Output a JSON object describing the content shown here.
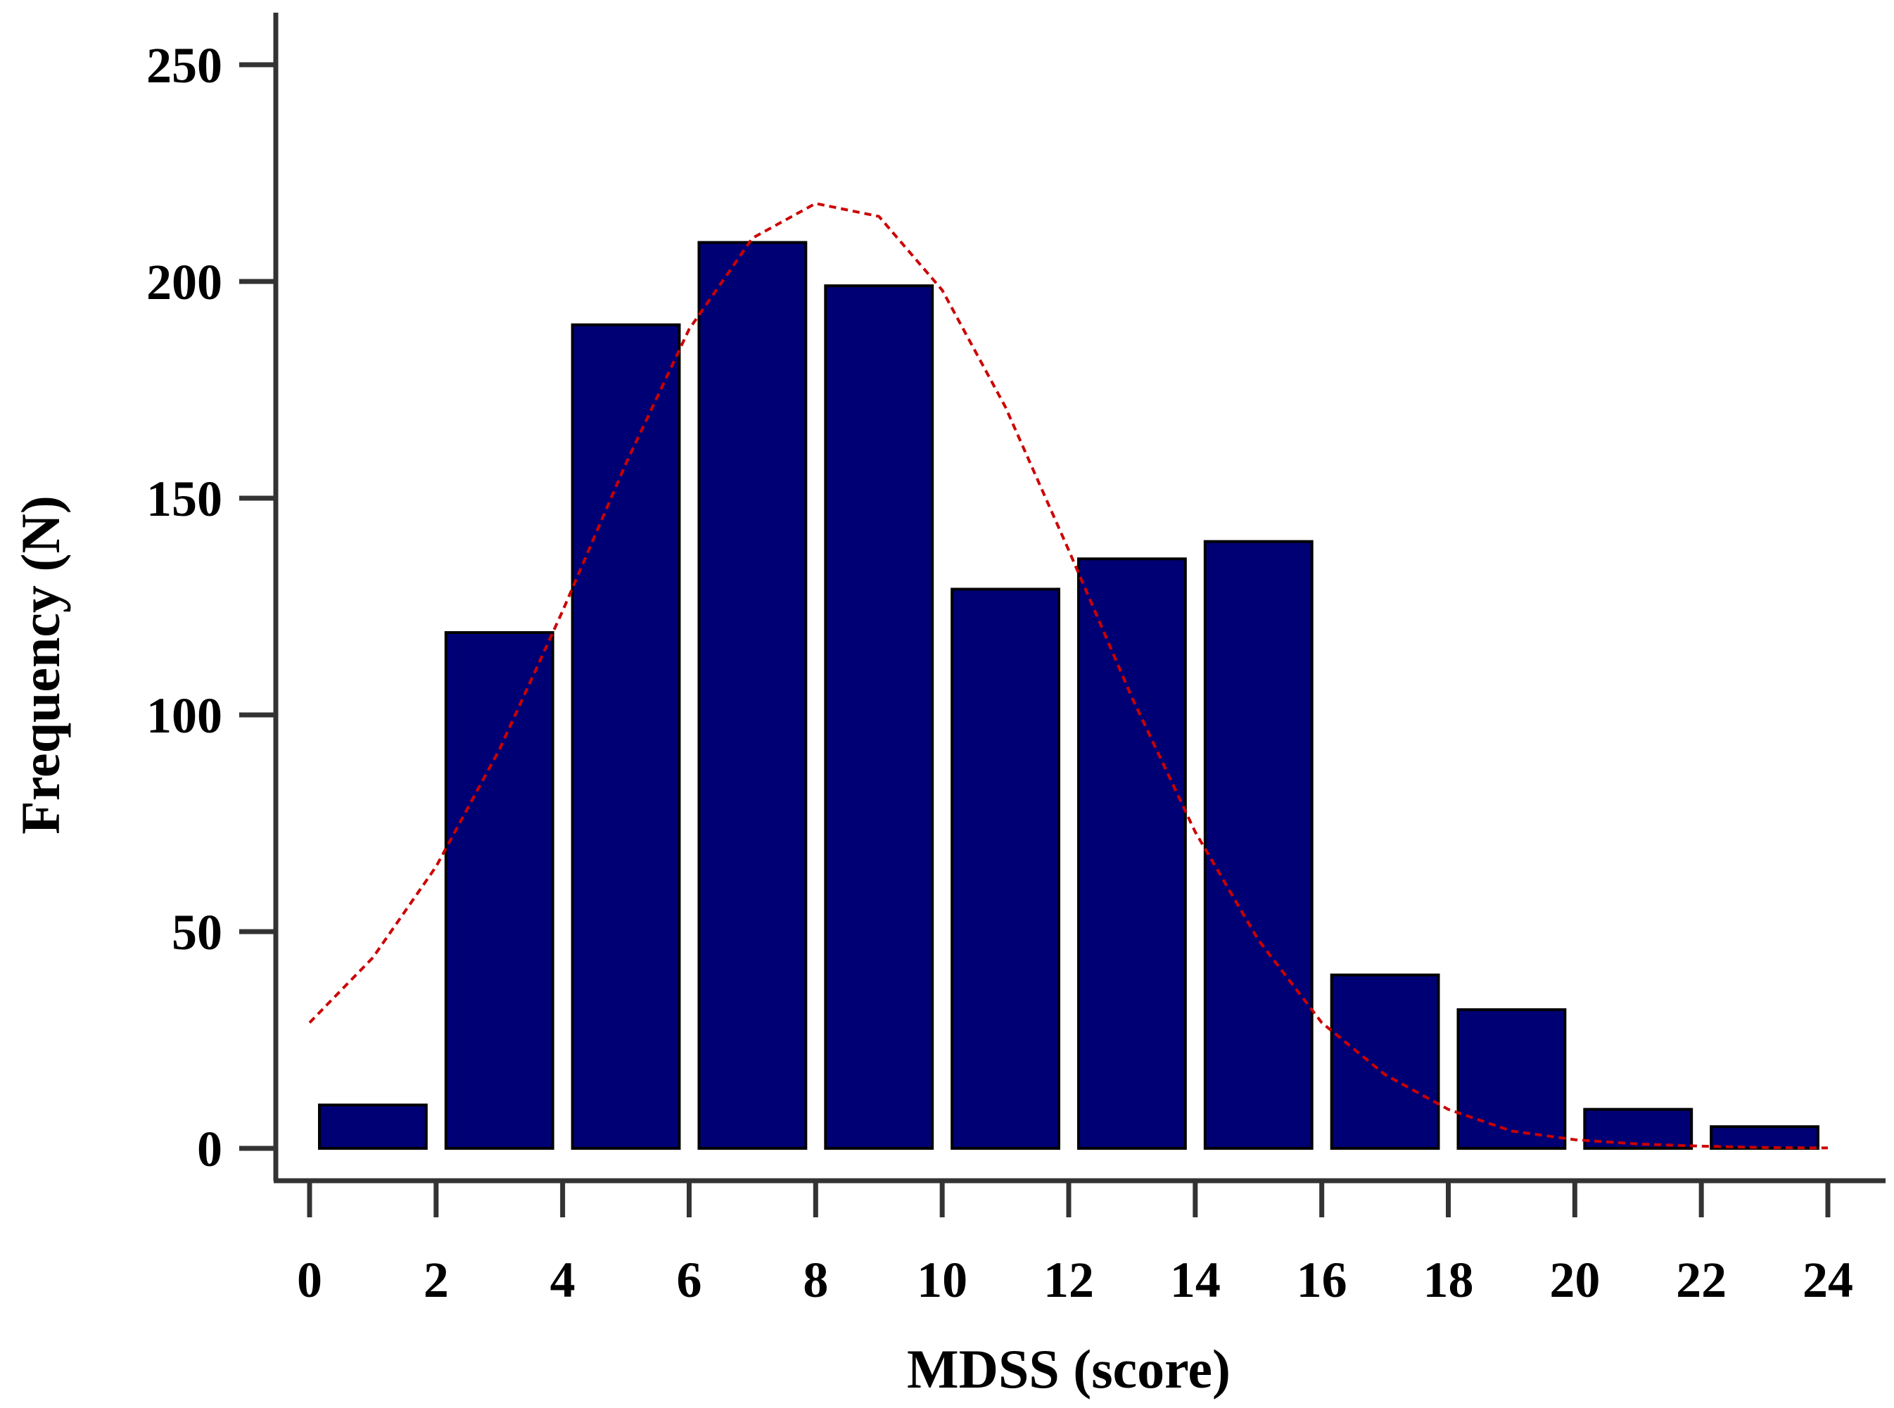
{
  "chart_data": {
    "type": "bar",
    "title": "",
    "xlabel": "MDSS (score)",
    "ylabel": "Frequency (N)",
    "xlim": [
      0,
      24
    ],
    "ylim": [
      0,
      250
    ],
    "xticks": [
      0,
      2,
      4,
      6,
      8,
      10,
      12,
      14,
      16,
      18,
      20,
      22,
      24
    ],
    "yticks": [
      0,
      50,
      100,
      150,
      200,
      250
    ],
    "grid": false,
    "bins": [
      {
        "start": 0,
        "end": 2,
        "value": 10
      },
      {
        "start": 2,
        "end": 4,
        "value": 119
      },
      {
        "start": 4,
        "end": 6,
        "value": 190
      },
      {
        "start": 6,
        "end": 8,
        "value": 209
      },
      {
        "start": 8,
        "end": 10,
        "value": 199
      },
      {
        "start": 10,
        "end": 12,
        "value": 129
      },
      {
        "start": 12,
        "end": 14,
        "value": 136
      },
      {
        "start": 14,
        "end": 16,
        "value": 140
      },
      {
        "start": 16,
        "end": 18,
        "value": 40
      },
      {
        "start": 18,
        "end": 20,
        "value": 32
      },
      {
        "start": 20,
        "end": 22,
        "value": 9
      },
      {
        "start": 22,
        "end": 24,
        "value": 5
      }
    ],
    "curve": {
      "type": "normal-fit",
      "style": "dashed",
      "x": [
        0,
        1,
        2,
        3,
        4,
        5,
        6,
        7,
        8,
        9,
        10,
        11,
        12,
        13,
        14,
        15,
        16,
        17,
        18,
        19,
        20,
        21,
        22,
        23,
        24
      ],
      "y": [
        29,
        44,
        65,
        92,
        124,
        158,
        189,
        210,
        218,
        215,
        198,
        171,
        138,
        104,
        73,
        48,
        29,
        17,
        9,
        4,
        2,
        1,
        0.5,
        0.2,
        0.1
      ]
    },
    "colors": {
      "bar_fill": "#000075",
      "bar_stroke": "#000000",
      "curve": "#cc0000",
      "axis": "#333333"
    }
  }
}
